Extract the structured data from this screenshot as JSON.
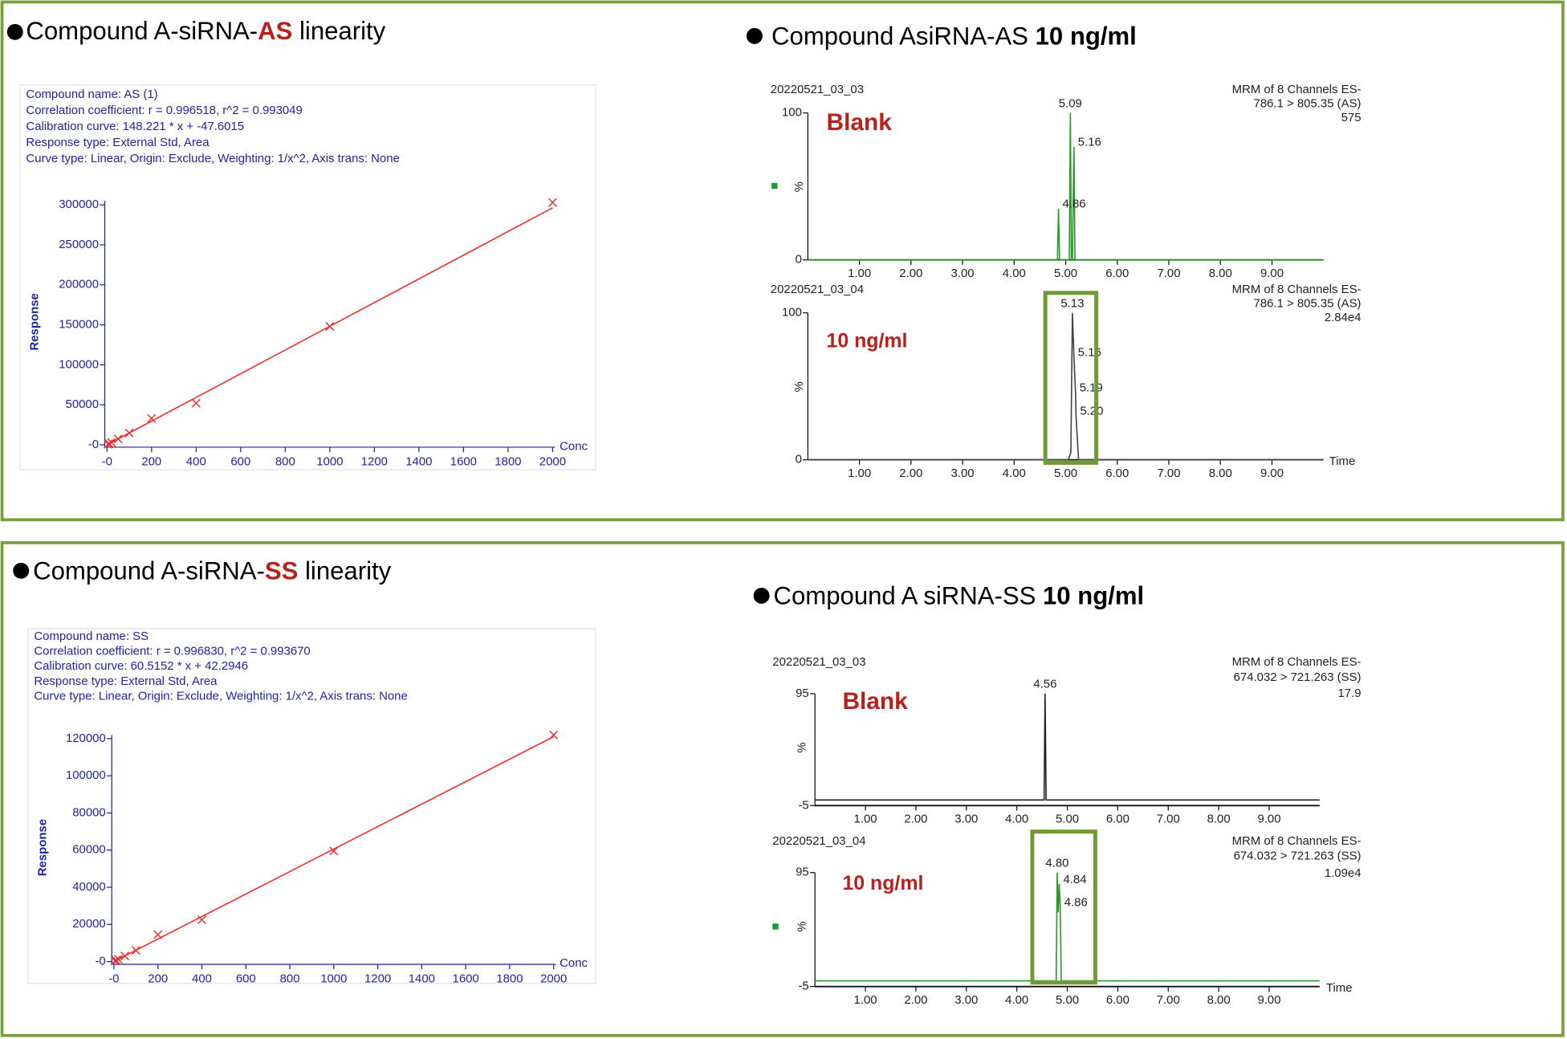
{
  "headings": [
    [
      "Compound A-siRNA-",
      "AS",
      " linearity"
    ],
    [
      "Compound AsiRNA-AS ",
      "10 ng/ml"
    ],
    [
      "Compound A-siRNA-",
      "SS",
      " linearity"
    ],
    [
      "Compound A siRNA-SS ",
      "10 ng/ml"
    ]
  ],
  "chart_data": [
    {
      "type": "scatter",
      "info": [
        "Compound name: AS (1)",
        "Correlation coefficient: r = 0.996518, r^2 = 0.993049",
        "Calibration curve: 148.221 * x + -47.6015",
        "Response type: External Std, Area",
        "Curve type: Linear, Origin: Exclude, Weighting: 1/x^2, Axis trans: None"
      ],
      "ylabel": "Response",
      "xlabel": "Conc",
      "xlim": [
        -10,
        2010
      ],
      "ylim": [
        -3000,
        305000
      ],
      "xticks": [
        {
          "value": 0,
          "label": "-0"
        },
        200,
        400,
        600,
        800,
        1000,
        1200,
        1400,
        1600,
        1800,
        2000
      ],
      "yticks": [
        {
          "value": 0,
          "label": "-0"
        },
        50000,
        100000,
        150000,
        200000,
        250000,
        300000
      ],
      "points": {
        "x": [
          5,
          10,
          20,
          50,
          100,
          200,
          400,
          1000,
          2000
        ],
        "y": [
          700,
          1450,
          2900,
          7400,
          14800,
          33000,
          52000,
          148000,
          303000
        ]
      },
      "fit": {
        "x": [
          0,
          2000
        ],
        "y": [
          -47.6,
          296394.4
        ]
      },
      "color": "#e8322f"
    },
    {
      "type": "scatter",
      "info": [
        "Compound name: SS",
        "Correlation coefficient: r = 0.996830, r^2 = 0.993670",
        "Calibration curve: 60.5152 * x + 42.2946",
        "Response type: External Std, Area",
        "Curve type: Linear, Origin: Exclude, Weighting: 1/x^2, Axis trans: None"
      ],
      "ylabel": "Response",
      "xlabel": "Conc",
      "xlim": [
        -10,
        2010
      ],
      "ylim": [
        -1500,
        122000
      ],
      "xticks": [
        {
          "value": 0,
          "label": "-0"
        },
        200,
        400,
        600,
        800,
        1000,
        1200,
        1400,
        1600,
        1800,
        2000
      ],
      "yticks": [
        {
          "value": 0,
          "label": "-0"
        },
        20000,
        40000,
        60000,
        80000,
        100000,
        120000
      ],
      "points": {
        "x": [
          5,
          10,
          20,
          50,
          100,
          200,
          400,
          1000,
          2000
        ],
        "y": [
          350,
          650,
          1250,
          3000,
          6000,
          14500,
          22500,
          59500,
          122000
        ]
      },
      "fit": {
        "x": [
          0,
          2000
        ],
        "y": [
          42.3,
          121072.7
        ]
      },
      "color": "#e8322f"
    },
    {
      "type": "line",
      "run_id": "20220521_03_03",
      "header": [
        "MRM of 8 Channels ES-",
        "786.1 > 805.35 (AS)",
        "575"
      ],
      "sample": "Blank",
      "ylabel": "%",
      "xlim": [
        0,
        10
      ],
      "ylim": [
        0,
        100
      ],
      "xticks": [
        {
          "value": 1,
          "label": "1.00"
        },
        {
          "value": 2,
          "label": "2.00"
        },
        {
          "value": 3,
          "label": "3.00"
        },
        {
          "value": 4,
          "label": "4.00"
        },
        {
          "value": 5,
          "label": "5.00"
        },
        {
          "value": 6,
          "label": "6.00"
        },
        {
          "value": 7,
          "label": "7.00"
        },
        {
          "value": 8,
          "label": "8.00"
        },
        {
          "value": 9,
          "label": "9.00"
        }
      ],
      "yticks": [
        0,
        100
      ],
      "trace": {
        "x": [
          0,
          4.84,
          4.86,
          4.88,
          5.07,
          5.09,
          5.11,
          5.13,
          5.16,
          5.18,
          10
        ],
        "y": [
          0,
          0,
          35,
          0,
          0,
          100,
          0,
          0,
          77,
          0,
          0
        ]
      },
      "peaks": {
        "x": [
          5.09,
          5.16,
          4.86
        ],
        "y": [
          100,
          77,
          35
        ],
        "labels": [
          "5.09",
          "5.16",
          "4.86"
        ]
      },
      "color": "#2a9a2a",
      "text_color": "#3a9a3a"
    },
    {
      "type": "line",
      "run_id": "20220521_03_04",
      "header": [
        "MRM of 8 Channels ES-",
        "786.1 > 805.35 (AS)",
        "2.84e4"
      ],
      "sample": "10 ng/ml",
      "ylabel": "%",
      "xlabel": "Time",
      "xlim": [
        0,
        10
      ],
      "ylim": [
        0,
        100
      ],
      "xticks": [
        {
          "value": 1,
          "label": "1.00"
        },
        {
          "value": 2,
          "label": "2.00"
        },
        {
          "value": 3,
          "label": "3.00"
        },
        {
          "value": 4,
          "label": "4.00"
        },
        {
          "value": 5,
          "label": "5.00"
        },
        {
          "value": 6,
          "label": "6.00"
        },
        {
          "value": 7,
          "label": "7.00"
        },
        {
          "value": 8,
          "label": "8.00"
        },
        {
          "value": 9,
          "label": "9.00"
        }
      ],
      "yticks": [
        0,
        100
      ],
      "trace": {
        "x": [
          0,
          5.05,
          5.1,
          5.13,
          5.16,
          5.19,
          5.2,
          5.25,
          10
        ],
        "y": [
          0,
          0,
          5,
          100,
          70,
          46,
          30,
          0,
          0
        ]
      },
      "peaks": {
        "x": [
          5.13,
          5.16,
          5.19,
          5.2
        ],
        "y": [
          100,
          70,
          46,
          30
        ],
        "labels": [
          "5.13",
          "5.16",
          "5.19",
          "5.20"
        ]
      },
      "color": "#444444",
      "text_color": "#333333"
    },
    {
      "type": "line",
      "run_id": "20220521_03_03",
      "header": [
        "MRM of 8 Channels ES-",
        "674.032 > 721.263 (SS)",
        "17.9"
      ],
      "sample": "Blank",
      "ylabel": "%",
      "xlim": [
        0,
        10
      ],
      "ylim": [
        -5,
        95
      ],
      "xticks": [
        {
          "value": 1,
          "label": "1.00"
        },
        {
          "value": 2,
          "label": "2.00"
        },
        {
          "value": 3,
          "label": "3.00"
        },
        {
          "value": 4,
          "label": "4.00"
        },
        {
          "value": 5,
          "label": "5.00"
        },
        {
          "value": 6,
          "label": "6.00"
        },
        {
          "value": 7,
          "label": "7.00"
        },
        {
          "value": 8,
          "label": "8.00"
        },
        {
          "value": 9,
          "label": "9.00"
        }
      ],
      "yticks": [
        -5,
        95
      ],
      "trace": {
        "x": [
          0,
          4.54,
          4.56,
          4.58,
          10
        ],
        "y": [
          0,
          0,
          95,
          0,
          0
        ]
      },
      "peaks": {
        "x": [
          4.56
        ],
        "y": [
          95
        ],
        "labels": [
          "4.56"
        ]
      },
      "color": "#222222",
      "text_color": "#222222"
    },
    {
      "type": "line",
      "run_id": "20220521_03_04",
      "header": [
        "MRM of 8 Channels ES-",
        "674.032 > 721.263 (SS)",
        "1.09e4"
      ],
      "sample": "10 ng/ml",
      "ylabel": "%",
      "xlabel": "Time",
      "xlim": [
        0,
        10
      ],
      "ylim": [
        -5,
        95
      ],
      "xticks": [
        {
          "value": 1,
          "label": "1.00"
        },
        {
          "value": 2,
          "label": "2.00"
        },
        {
          "value": 3,
          "label": "3.00"
        },
        {
          "value": 4,
          "label": "4.00"
        },
        {
          "value": 5,
          "label": "5.00"
        },
        {
          "value": 6,
          "label": "6.00"
        },
        {
          "value": 7,
          "label": "7.00"
        },
        {
          "value": 8,
          "label": "8.00"
        },
        {
          "value": 9,
          "label": "9.00"
        }
      ],
      "yticks": [
        -5,
        95
      ],
      "trace": {
        "x": [
          0,
          4.78,
          4.8,
          4.82,
          4.84,
          4.86,
          4.88,
          10
        ],
        "y": [
          0,
          0,
          95,
          60,
          85,
          65,
          0,
          0
        ]
      },
      "peaks": {
        "x": [
          4.8,
          4.84,
          4.86
        ],
        "y": [
          95,
          85,
          65
        ],
        "labels": [
          "4.80",
          "4.84",
          "4.86"
        ]
      },
      "color": "#2a9a2a",
      "text_color": "#3a9a3a"
    }
  ]
}
